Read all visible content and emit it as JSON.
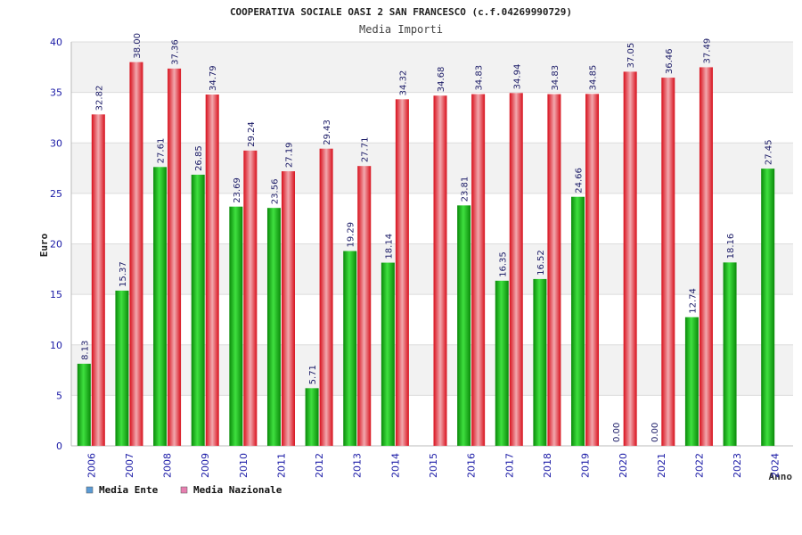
{
  "chart_data": {
    "type": "bar",
    "title": "COOPERATIVA SOCIALE OASI 2 SAN FRANCESCO (c.f.04269990729)",
    "subtitle": "Media Importi",
    "xlabel": "Anno",
    "ylabel": "Euro",
    "ylim": [
      0,
      40
    ],
    "yticks": [
      0,
      5,
      10,
      15,
      20,
      25,
      30,
      35,
      40
    ],
    "grid": true,
    "legend_placement": "bottom-left",
    "categories": [
      "2006",
      "2007",
      "2008",
      "2009",
      "2010",
      "2011",
      "2012",
      "2013",
      "2014",
      "2015",
      "2016",
      "2017",
      "2018",
      "2019",
      "2020",
      "2021",
      "2022",
      "2023",
      "2024"
    ],
    "series": [
      {
        "name": "Media Ente",
        "color": "#1bbf1b",
        "legend_color": "#5b9bd5",
        "values": [
          8.13,
          15.37,
          27.61,
          26.85,
          23.69,
          23.56,
          5.71,
          19.29,
          18.14,
          null,
          23.81,
          16.35,
          16.52,
          24.66,
          0.0,
          0.0,
          12.74,
          18.16,
          27.45
        ],
        "labels": [
          "8.13",
          "15.37",
          "27.61",
          "26.85",
          "23.69",
          "23.56",
          "5.71",
          "19.29",
          "18.14",
          "",
          "23.81",
          "16.35",
          "16.52",
          "24.66",
          "0.00",
          "0.00",
          "12.74",
          "18.16",
          "27.45"
        ]
      },
      {
        "name": "Media Nazionale",
        "color": "#e8323c",
        "legend_color": "#e67fb0",
        "values": [
          32.82,
          38.0,
          37.36,
          34.79,
          29.24,
          27.19,
          29.43,
          27.71,
          34.32,
          34.68,
          34.83,
          34.94,
          34.83,
          34.85,
          37.05,
          36.46,
          37.49,
          null,
          null
        ],
        "labels": [
          "32.82",
          "38.00",
          "37.36",
          "34.79",
          "29.24",
          "27.19",
          "29.43",
          "27.71",
          "34.32",
          "34.68",
          "34.83",
          "34.94",
          "34.83",
          "34.85",
          "37.05",
          "36.46",
          "37.49",
          "",
          ""
        ]
      }
    ]
  }
}
